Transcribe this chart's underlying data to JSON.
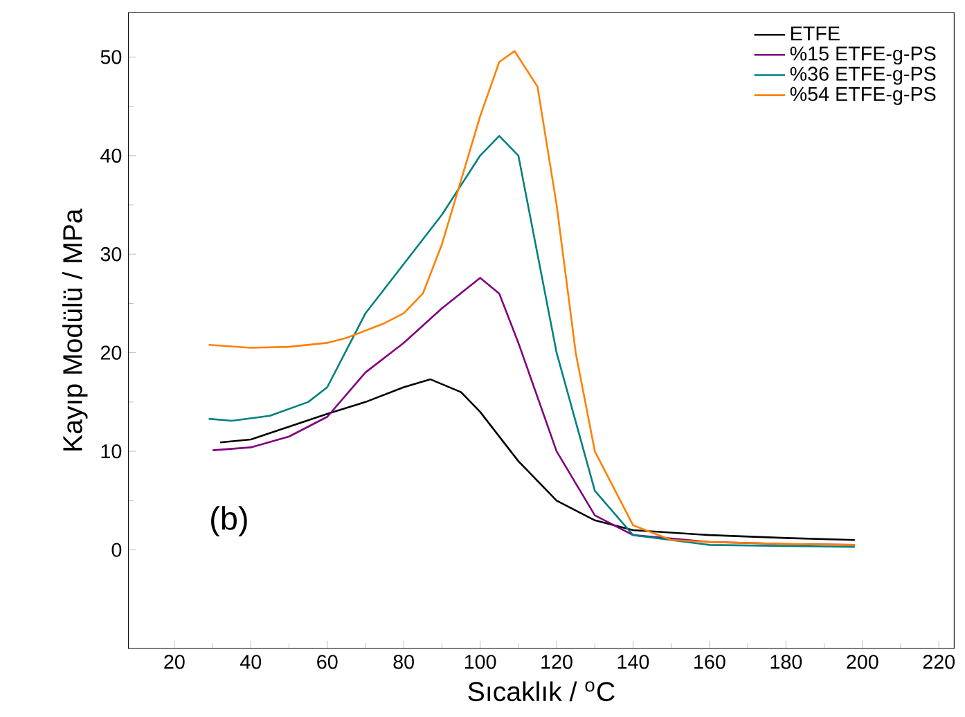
{
  "chart_data": {
    "type": "line",
    "xlabel": "Sıcaklık  / $^{o}$C",
    "ylabel": "Kayıp Modülü / MPa",
    "xlim": [
      8,
      224
    ],
    "ylim": [
      -10,
      54.5
    ],
    "xticks": [
      20,
      40,
      60,
      80,
      100,
      120,
      140,
      160,
      180,
      200,
      220
    ],
    "yticks": [
      0,
      10,
      20,
      30,
      40,
      50
    ],
    "legend": "top right",
    "marker": "none",
    "line_style": "solid",
    "annotations": [
      "(b)"
    ],
    "series": [
      {
        "name": "ETFE",
        "color": "#000000",
        "x": [
          32,
          40,
          50,
          60,
          70,
          80,
          87,
          95,
          100,
          110,
          120,
          130,
          140,
          160,
          180,
          198
        ],
        "values": [
          10.9,
          11.2,
          12.5,
          13.8,
          15,
          16.5,
          17.3,
          16,
          14,
          9,
          5,
          3,
          2,
          1.5,
          1.2,
          1.0
        ]
      },
      {
        "name": "%15 ETFE-g-PS",
        "color": "#800080",
        "x": [
          30,
          40,
          50,
          60,
          70,
          80,
          90,
          100,
          105,
          110,
          120,
          130,
          140,
          160,
          180,
          198
        ],
        "values": [
          10.1,
          10.4,
          11.5,
          13.5,
          18,
          21,
          24.5,
          27.6,
          26,
          21,
          10,
          3.5,
          1.5,
          0.8,
          0.6,
          0.5
        ]
      },
      {
        "name": "%36 ETFE-g-PS",
        "color": "#008080",
        "x": [
          29,
          35,
          45,
          55,
          60,
          70,
          80,
          90,
          100,
          105,
          110,
          115,
          120,
          130,
          140,
          160,
          180,
          198
        ],
        "values": [
          13.3,
          13.1,
          13.6,
          15,
          16.5,
          24,
          29,
          34,
          40,
          42,
          40,
          30,
          20,
          6,
          1.5,
          0.5,
          0.4,
          0.3
        ]
      },
      {
        "name": "%54 ETFE-g-PS",
        "color": "#ff8000",
        "x": [
          29,
          40,
          50,
          60,
          65,
          75,
          80,
          85,
          90,
          100,
          105,
          109,
          115,
          120,
          125,
          130,
          140,
          150,
          160,
          180,
          198
        ],
        "values": [
          20.8,
          20.5,
          20.6,
          21,
          21.5,
          23,
          24,
          26,
          31,
          44,
          49.5,
          50.6,
          47,
          35,
          20,
          10,
          2.5,
          1,
          0.8,
          0.6,
          0.5
        ]
      }
    ]
  }
}
